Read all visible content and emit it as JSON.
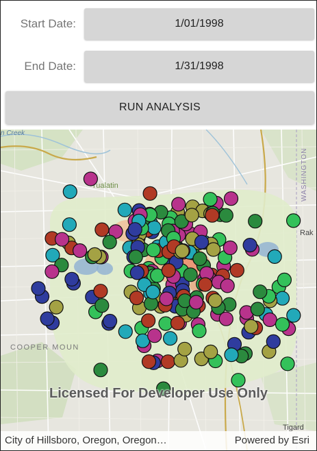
{
  "form": {
    "start_label": "Start Date:",
    "start_value": "1/01/1998",
    "end_label": "End Date:",
    "end_value": "1/31/1998",
    "run_label": "RUN ANALYSIS"
  },
  "map": {
    "place_labels": {
      "creek": "n Creek",
      "tualatin": "Tualatin",
      "washington": "WASHINGTON",
      "rak": "Rak",
      "cooper": "COOPER MOUN",
      "tigard": "Tigard"
    },
    "watermark": "Licensed For Developer Use Only",
    "point_colors": [
      "#2b8a3e",
      "#34c15a",
      "#22a9b9",
      "#2f3c9e",
      "#b8338c",
      "#b13a25",
      "#a4a244"
    ]
  },
  "attribution": {
    "source": "City of Hillsboro, Oregon, Oregon…",
    "powered_by": "Powered by Esri"
  }
}
